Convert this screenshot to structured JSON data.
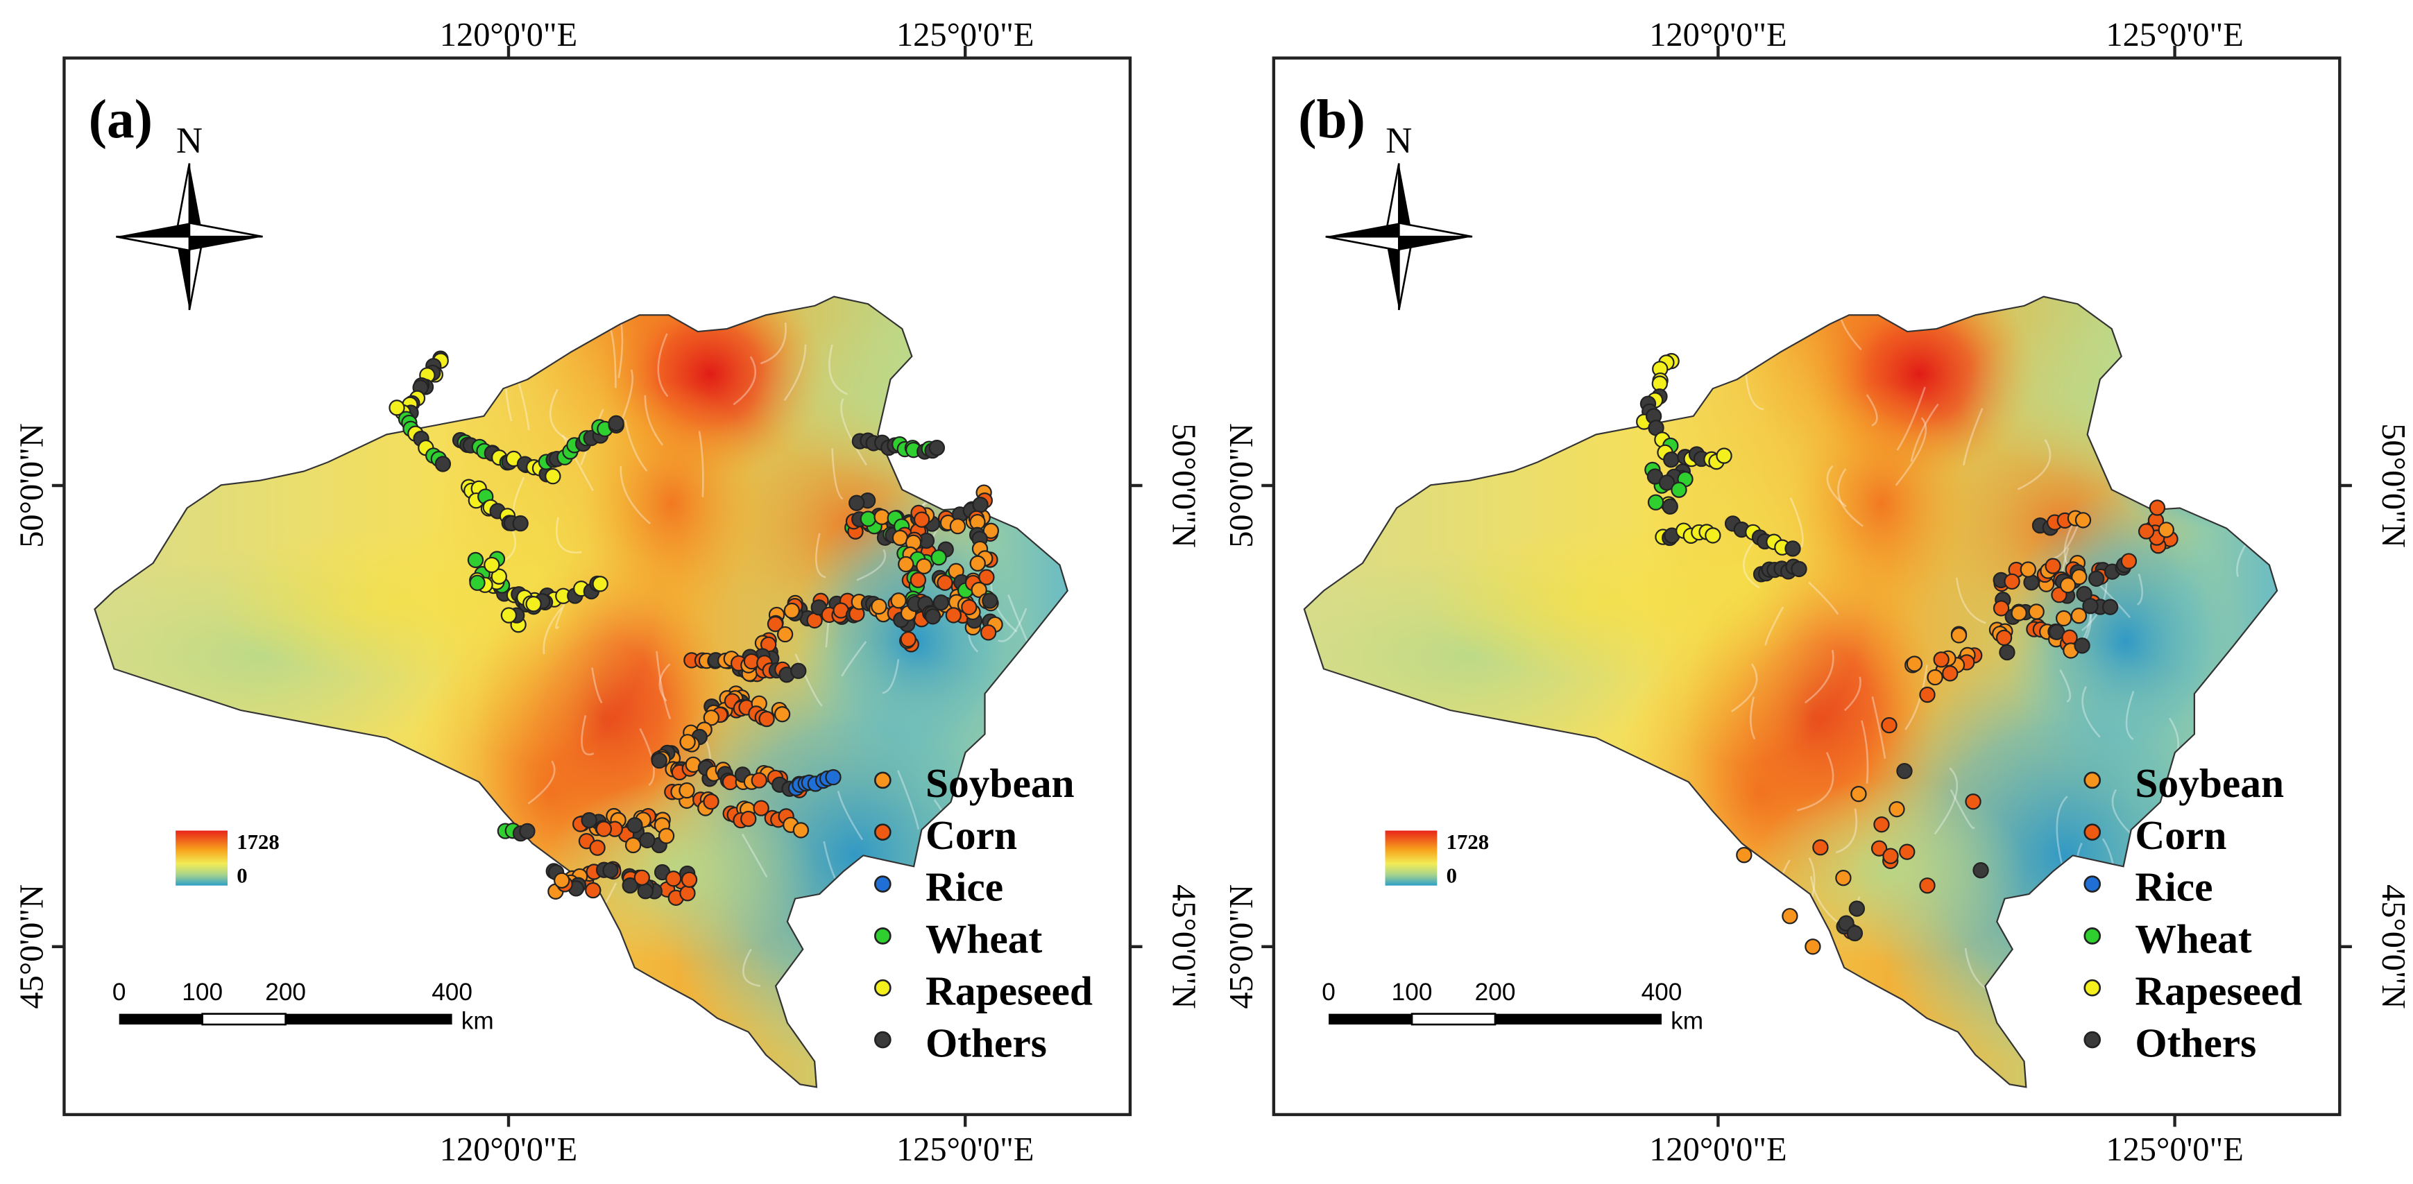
{
  "panels": [
    {
      "label": "(a)",
      "north": "N",
      "top_ticks": [
        "120°0'0\"E",
        "125°0'0\"E"
      ],
      "bottom_ticks": [
        "120°0'0\"E",
        "125°0'0\"E"
      ],
      "left_ticks": [
        "50°0'0\"N",
        "45°0'0\"N"
      ],
      "right_ticks": [
        "50°0'0\"N",
        "45°0'0\"N"
      ],
      "elevation": {
        "max": "1728",
        "min": "0"
      },
      "scale": {
        "ticks": [
          "0",
          "100",
          "200",
          "400"
        ],
        "unit": "km"
      },
      "legend": [
        {
          "label": "Soybean",
          "color": "#f7941d"
        },
        {
          "label": "Corn",
          "color": "#ee5a12"
        },
        {
          "label": "Rice",
          "color": "#1f6fd6"
        },
        {
          "label": "Wheat",
          "color": "#2fcf2f"
        },
        {
          "label": "Rapeseed",
          "color": "#f4f01e"
        },
        {
          "label": "Others",
          "color": "#3a3a3a"
        }
      ],
      "sample_density": "dense"
    },
    {
      "label": "(b)",
      "north": "N",
      "top_ticks": [
        "120°0'0\"E",
        "125°0'0\"E"
      ],
      "bottom_ticks": [
        "120°0'0\"E",
        "125°0'0\"E"
      ],
      "left_ticks": [
        "50°0'0\"N",
        "45°0'0\"N"
      ],
      "right_ticks": [
        "50°0'0\"N",
        "45°0'0\"N"
      ],
      "elevation": {
        "max": "1728",
        "min": "0"
      },
      "scale": {
        "ticks": [
          "0",
          "100",
          "200",
          "400"
        ],
        "unit": "km"
      },
      "legend": [
        {
          "label": "Soybean",
          "color": "#f7941d"
        },
        {
          "label": "Corn",
          "color": "#ee5a12"
        },
        {
          "label": "Rice",
          "color": "#1f6fd6"
        },
        {
          "label": "Wheat",
          "color": "#2fcf2f"
        },
        {
          "label": "Rapeseed",
          "color": "#f4f01e"
        },
        {
          "label": "Others",
          "color": "#3a3a3a"
        }
      ],
      "sample_density": "sparse"
    }
  ]
}
